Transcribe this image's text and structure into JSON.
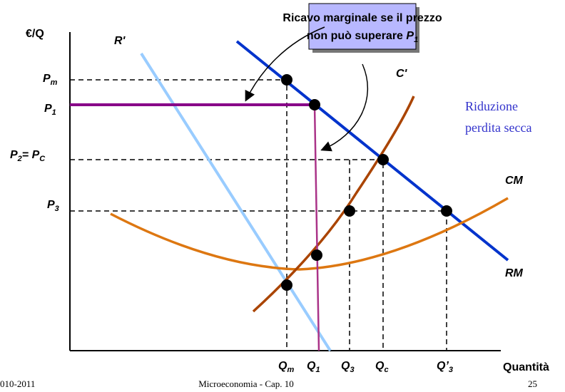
{
  "y_axis_label": "€/Q",
  "x_axis_label": "Quantità",
  "curves": {
    "r_prime": "R'",
    "c_prime": "C'",
    "cm": "CM",
    "rm": "RM"
  },
  "prices": [
    {
      "base": "P",
      "sub": "m"
    },
    {
      "base": "P",
      "sub": "1"
    },
    {
      "base": "P",
      "sub": "2",
      "mid": "= P",
      "sub2": "C"
    },
    {
      "base": "P",
      "sub": "3"
    }
  ],
  "quantities": [
    {
      "base": "Q",
      "sub": "m"
    },
    {
      "base": "Q",
      "sub": "1"
    },
    {
      "base": "Q",
      "sub": "3"
    },
    {
      "base": "Q",
      "sub": "c"
    },
    {
      "base": "Q’",
      "sub": "3"
    }
  ],
  "callout": {
    "line1": "Ricavo marginale se il prezzo",
    "line2": "non può superare ",
    "var": "P",
    "sub": "1"
  },
  "annotation": {
    "line1": "Riduzione",
    "line2": "perdita secca"
  },
  "footer": {
    "left": "010-2011",
    "center": "Microeconomia - Cap. 10",
    "right": "25"
  }
}
